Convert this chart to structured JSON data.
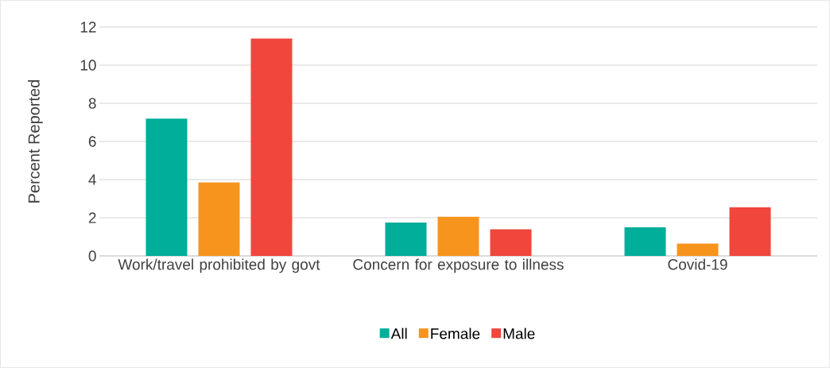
{
  "chart_data": {
    "type": "bar",
    "ylabel": "Percent Reported",
    "categories": [
      "Work/travel prohibited by govt",
      "Concern for exposure to illness",
      "Covid-19"
    ],
    "series": [
      {
        "name": "All",
        "color": "#00ae9a",
        "values": [
          7.2,
          1.75,
          1.5
        ]
      },
      {
        "name": "Female",
        "color": "#f7941e",
        "values": [
          3.85,
          2.05,
          0.65
        ]
      },
      {
        "name": "Male",
        "color": "#f0463c",
        "values": [
          11.4,
          1.4,
          2.55
        ]
      }
    ],
    "ylim": [
      0,
      12
    ],
    "yticks": [
      0,
      2,
      4,
      6,
      8,
      10,
      12
    ],
    "grid": "y",
    "legend": "bottom"
  }
}
